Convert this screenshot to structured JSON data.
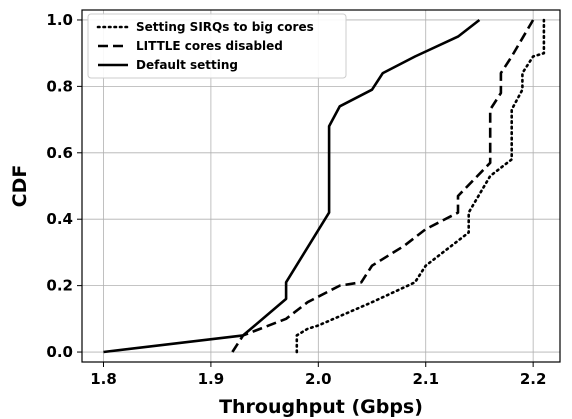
{
  "chart_data": {
    "type": "line",
    "xlabel": "Throughput (Gbps)",
    "ylabel": "CDF",
    "xlim": [
      1.78,
      2.225
    ],
    "ylim": [
      -0.03,
      1.03
    ],
    "xticks": [
      "1.8",
      "1.9",
      "2.0",
      "2.1",
      "2.2"
    ],
    "yticks": [
      "0.0",
      "0.2",
      "0.4",
      "0.6",
      "0.8",
      "1.0"
    ],
    "grid": true,
    "legend_position": "top-left",
    "series": [
      {
        "name": "Setting SIRQs to big cores",
        "style": "dotted",
        "x": [
          1.98,
          1.98,
          1.99,
          2.0,
          2.05,
          2.09,
          2.1,
          2.14,
          2.14,
          2.16,
          2.18,
          2.18,
          2.19,
          2.19,
          2.2,
          2.21,
          2.21
        ],
        "y": [
          0.0,
          0.05,
          0.07,
          0.08,
          0.15,
          0.21,
          0.26,
          0.36,
          0.42,
          0.53,
          0.58,
          0.73,
          0.79,
          0.84,
          0.89,
          0.9,
          1.0
        ]
      },
      {
        "name": "LITTLE cores disabled",
        "style": "dashed",
        "x": [
          1.92,
          1.93,
          1.97,
          1.99,
          2.02,
          2.04,
          2.05,
          2.07,
          2.08,
          2.1,
          2.13,
          2.13,
          2.16,
          2.16,
          2.17,
          2.17,
          2.18,
          2.2
        ],
        "y": [
          0.0,
          0.05,
          0.1,
          0.15,
          0.2,
          0.21,
          0.26,
          0.3,
          0.32,
          0.37,
          0.42,
          0.47,
          0.57,
          0.73,
          0.78,
          0.84,
          0.89,
          1.0
        ]
      },
      {
        "name": "Default setting",
        "style": "solid",
        "x": [
          1.8,
          1.93,
          1.97,
          1.97,
          2.01,
          2.01,
          2.02,
          2.05,
          2.06,
          2.09,
          2.13,
          2.15
        ],
        "y": [
          0.0,
          0.05,
          0.16,
          0.21,
          0.42,
          0.68,
          0.74,
          0.79,
          0.84,
          0.89,
          0.95,
          1.0
        ]
      }
    ]
  }
}
